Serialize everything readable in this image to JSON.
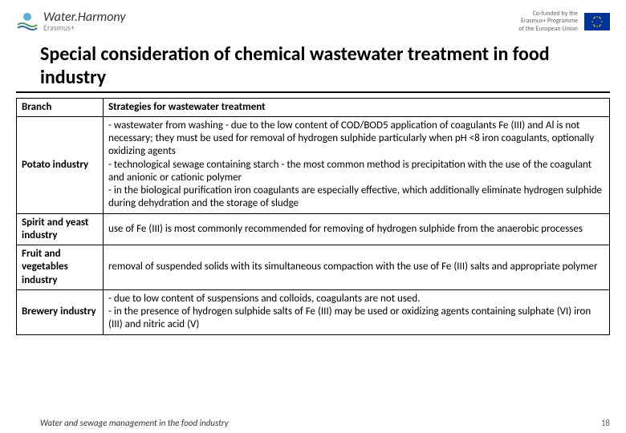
{
  "header": {
    "logo_main": "Water.Harmony",
    "logo_sub": "Erasmus+",
    "cofund_line1": "Co-funded by the",
    "cofund_line2": "Erasmus+ Programme",
    "cofund_line3": "of the European Union"
  },
  "title": "Special consideration of chemical wastewater treatment in food industry",
  "table": {
    "header_col1": "Branch",
    "header_col2": "Strategies for wastewater treatment",
    "rows": [
      {
        "branch": "Potato industry",
        "strategy": "- wastewater from washing - due to the low content of COD/BOD5 application of coagulants Fe (III) and Al is not necessary; they must be used for removal of hydrogen sulphide particularly when pH <8 iron coagulants, optionally oxidizing agents\n- technological sewage containing starch - the most common method is precipitation with the use of the coagulant and anionic or cationic  polymer\n- in the biological purification iron coagulants are especially effective, which additionally eliminate hydrogen sulphide during dehydration and the storage of sludge"
      },
      {
        "branch": "Spirit and yeast industry",
        "strategy": "use of Fe (III) is most commonly recommended for removing of hydrogen sulphide from the anaerobic processes"
      },
      {
        "branch": "Fruit and vegetables industry",
        "strategy": "removal of suspended solids with its simultaneous compaction with the use of Fe (III) salts  and appropriate polymer"
      },
      {
        "branch": "Brewery industry",
        "strategy": "- due to low content of suspensions and colloids, coagulants are not used.\n- in the presence of hydrogen sulphide salts of Fe (III) may be used or oxidizing agents containing sulphate (VI) iron (III) and nitric acid (V)"
      }
    ]
  },
  "footer": {
    "text": "Water and sewage management in the food industry",
    "page": "18"
  },
  "colors": {
    "text": "#000000",
    "border": "#000000",
    "eu_blue": "#003399",
    "eu_gold": "#ffcc00"
  }
}
